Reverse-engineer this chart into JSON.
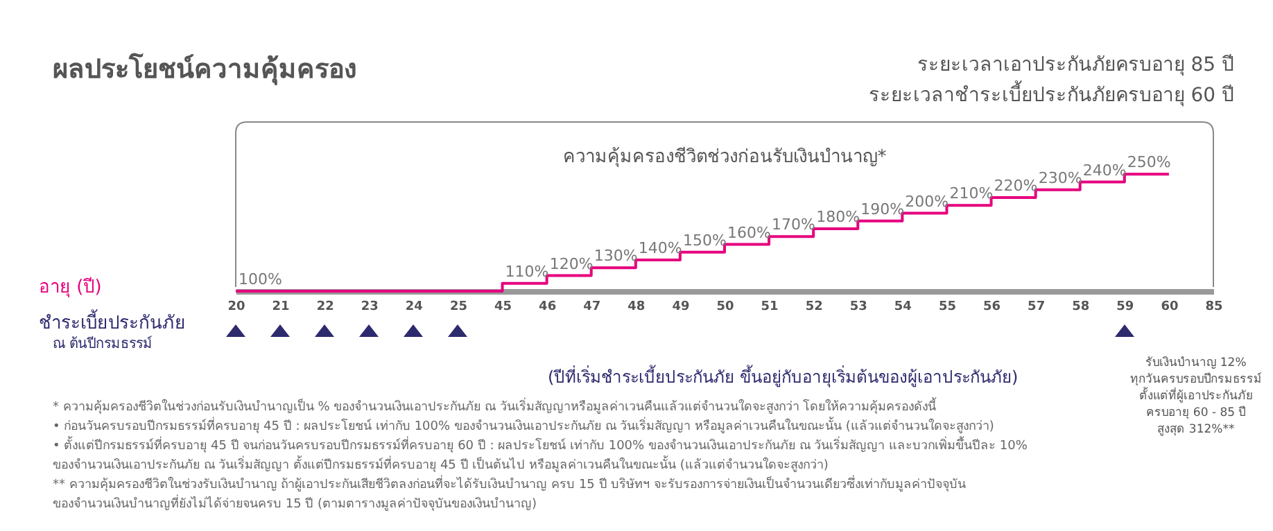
{
  "chart_data": {
    "type": "step",
    "title": "ผลประโยชน์ความคุ้มครอง",
    "subtitle": "ระยะเวลาเอาประกันภัยครบอายุ 85 ปี\nระยะเวลาชำระเบี้ยประกันภัยครบอายุ 60 ปี",
    "categories": [
      "20",
      "21",
      "22",
      "23",
      "24",
      "25",
      "45",
      "46",
      "47",
      "48",
      "49",
      "50",
      "51",
      "52",
      "53",
      "54",
      "55",
      "56",
      "57",
      "58",
      "59",
      "60",
      "85"
    ],
    "series": [
      {
        "color": "#e6007e",
        "values": [
          100,
          100,
          100,
          100,
          100,
          100,
          110,
          120,
          130,
          140,
          150,
          160,
          170,
          180,
          190,
          200,
          210,
          220,
          230,
          240,
          250,
          250,
          null
        ],
        "value_labels": [
          "100%",
          null,
          null,
          null,
          null,
          null,
          "110%",
          "120%",
          "130%",
          "140%",
          "150%",
          "160%",
          "170%",
          "180%",
          "190%",
          "200%",
          "210%",
          "220%",
          "230%",
          "240%",
          "250%",
          null,
          null
        ]
      }
    ],
    "annotations": [
      "ความคุ้มครองชีวิตช่วงก่อนรับเงินบำนาญ*",
      "ชำระเบี้ยประกันภัย",
      "ณ ต้นปีกรมธรรม์",
      "(ปีที่เริ่มชำระเบี้ยประกันภัย ขึ้นอยู่กับอายุเริ่มต้นของผู้เอาประกันภัย)",
      "รับเงินบำนาญ 12%",
      "ทุกวันครบรอบปีกรมธรรม์",
      "ตั้งแต่ที่ผู้เอาประกันภัย",
      "ครบอายุ 60 - 85 ปี",
      "สูงสุด 312%**",
      "* ความคุ้มครองชีวิตในช่วงก่อนรับเงินบำนาญเป็น % ของจำนวนเงินเอาประกันภัย ณ วันเริ่มสัญญาหรือมูลค่าเวนคืนแล้วแต่จำนวนใดจะสูงกว่า โดยให้ความคุ้มครองดังนี้",
      "• ก่อนวันครบรอบปีกรมธรรม์ที่ครบอายุ 45 ปี  : ผลประโยชน์ เท่ากับ 100% ของจำนวนเงินเอาประกันภัย ณ วันเริ่มสัญญา หรือมูลค่าเวนคืนในขณะนั้น (แล้วแต่จำนวนใดจะสูงกว่า)",
      "• ตั้งแต่ปีกรมธรรม์ที่ครบอายุ 45 ปี จนก่อนวันครบรอบปีกรมธรรม์ที่ครบอายุ 60 ปี  : ผลประโยชน์ เท่ากับ 100% ของจำนวนเงินเอาประกันภัย ณ วันเริ่มสัญญา และบวกเพิ่มขึ้นปีละ 10%",
      "ของจำนวนเงินเอาประกันภัย ณ วันเริ่มสัญญา ตั้งแต่ปีกรมธรรม์ที่ครบอายุ 45 ปี เป็นต้นไป หรือมูลค่าเวนคืนในขณะนั้น (แล้วแต่จำนวนใดจะสูงกว่า)",
      "** ความคุ้มครองชีวิตในช่วงรับเงินบำนาญ ถ้าผู้เอาประกันเสียชีวิตลงก่อนที่จะได้รับเงินบำนาญ ครบ 15 ปี บริษัทฯ จะรับรองการจ่ายเงินเป็นจำนวนเดียวซึ่งเท่ากับมูลค่าปัจจุบัน",
      "ของจำนวนเงินบำนาญที่ยังไม่ได้จ่ายจนครบ 15 ปี (ตามตารางมูลค่าปัจจุบันของเงินบำนาญ)",
      "อายุ (ปี)"
    ]
  }
}
